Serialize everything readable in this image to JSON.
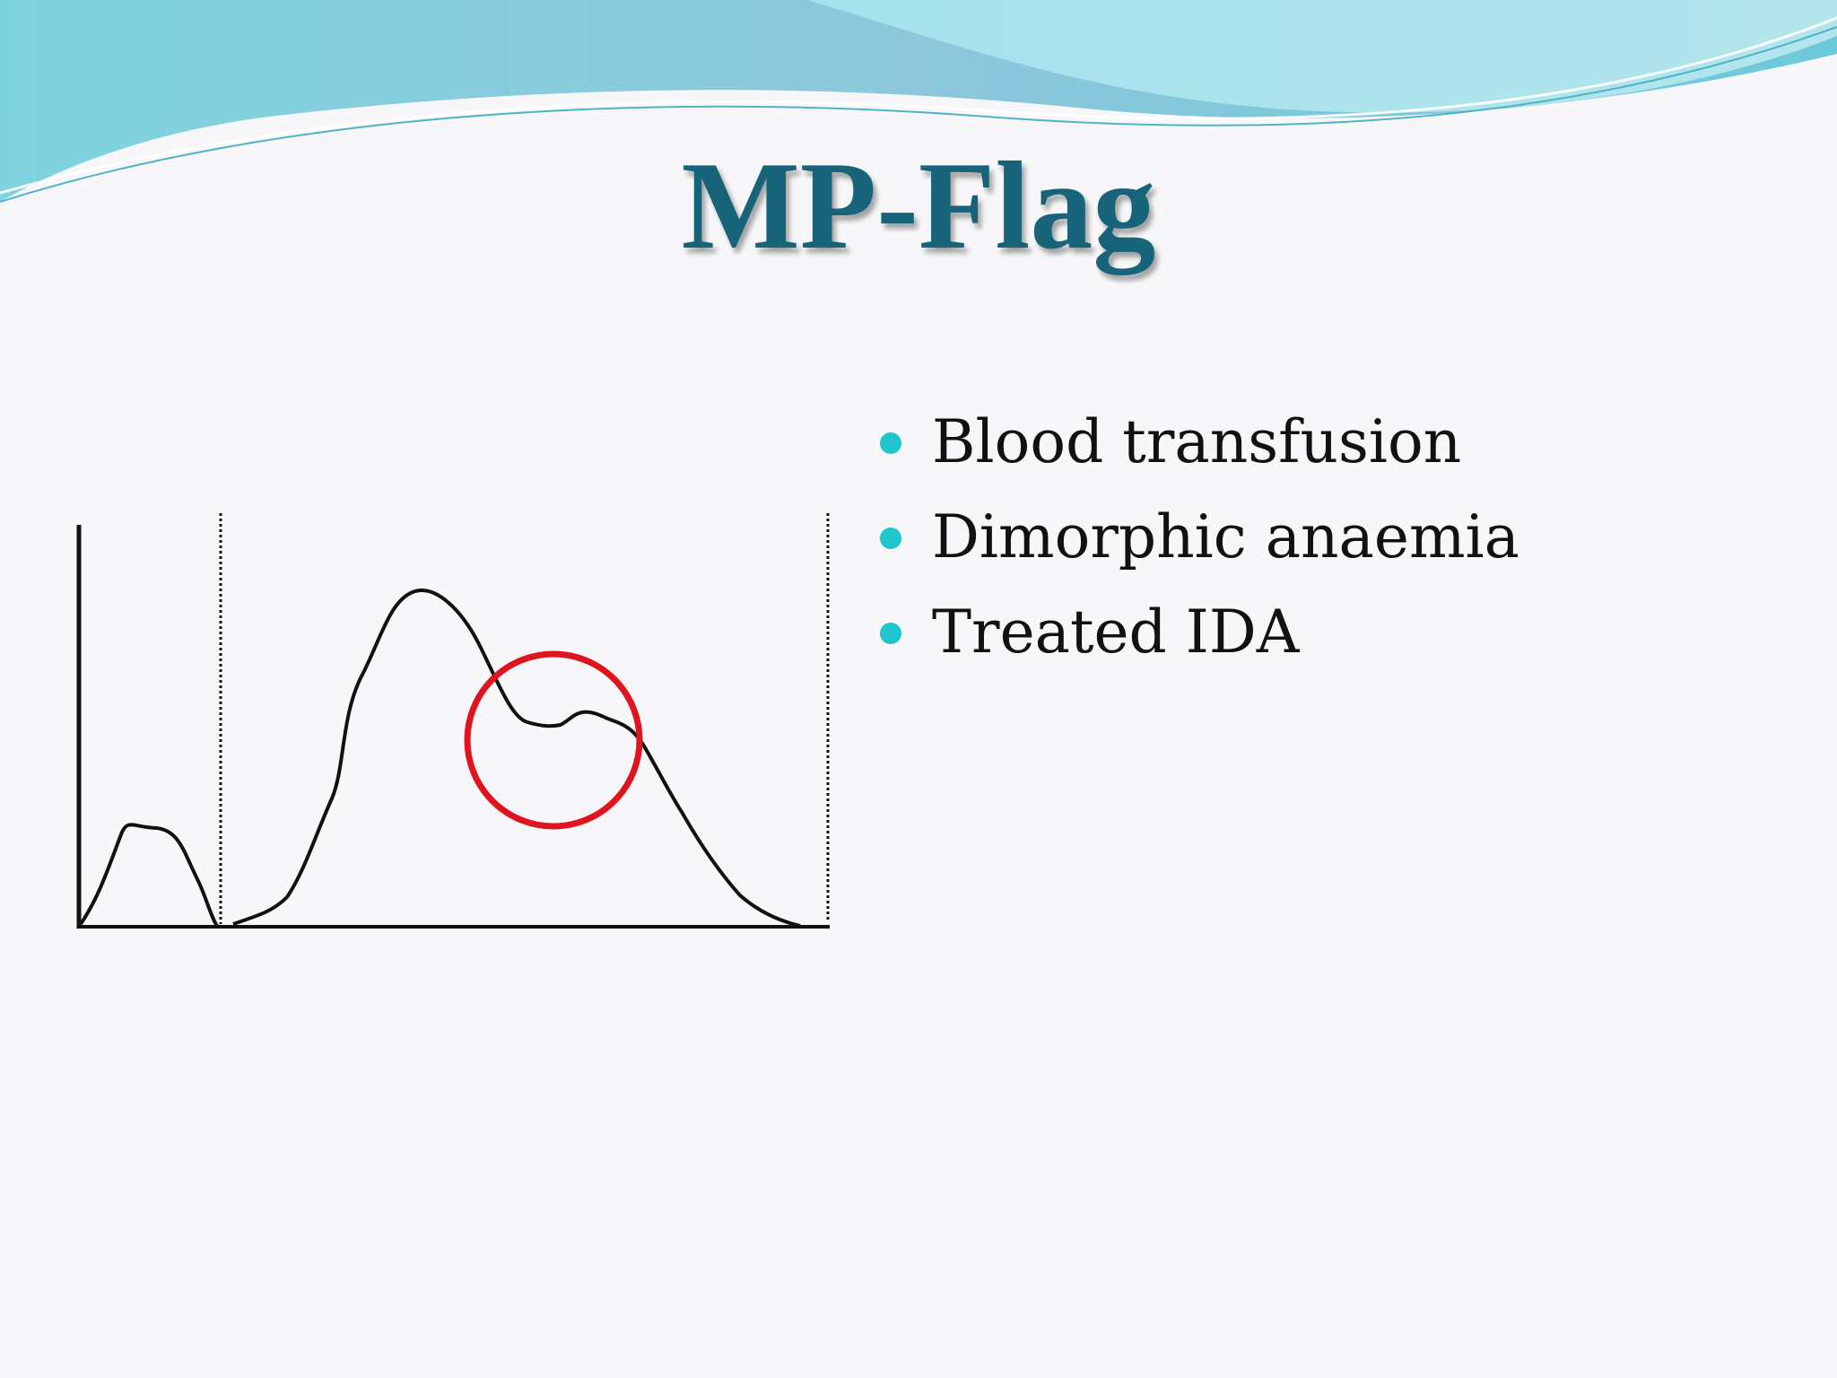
{
  "slide": {
    "title": "MP-Flag",
    "bullets": [
      "Blood transfusion",
      "Dimorphic anaemia",
      "Treated IDA"
    ]
  },
  "colors": {
    "title": "#17647a",
    "bullet": "#1fc4cf",
    "highlight_circle": "#e0141e",
    "curve": "#111111"
  },
  "figure": {
    "type": "histogram-curve",
    "highlight": "red circle marking the secondary shoulder peak",
    "threshold_lines": "dotted vertical discriminator lines"
  }
}
